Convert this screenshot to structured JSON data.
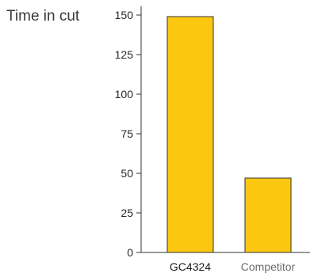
{
  "chart_data": {
    "type": "bar",
    "title": "",
    "xlabel": "",
    "ylabel": "Time in cut",
    "categories": [
      "GC4324",
      "Competitor"
    ],
    "values": [
      149,
      47
    ],
    "ylim": [
      0,
      160
    ],
    "yticks": [
      0,
      25,
      50,
      75,
      100,
      125,
      150
    ],
    "grid": false,
    "legend": "none",
    "colors": {
      "bar_fill": "#FBC711",
      "bar_stroke": "#333333",
      "axis": "#333333",
      "category_label_colors": [
        "#1a1a1a",
        "#6b6b6b"
      ]
    }
  }
}
